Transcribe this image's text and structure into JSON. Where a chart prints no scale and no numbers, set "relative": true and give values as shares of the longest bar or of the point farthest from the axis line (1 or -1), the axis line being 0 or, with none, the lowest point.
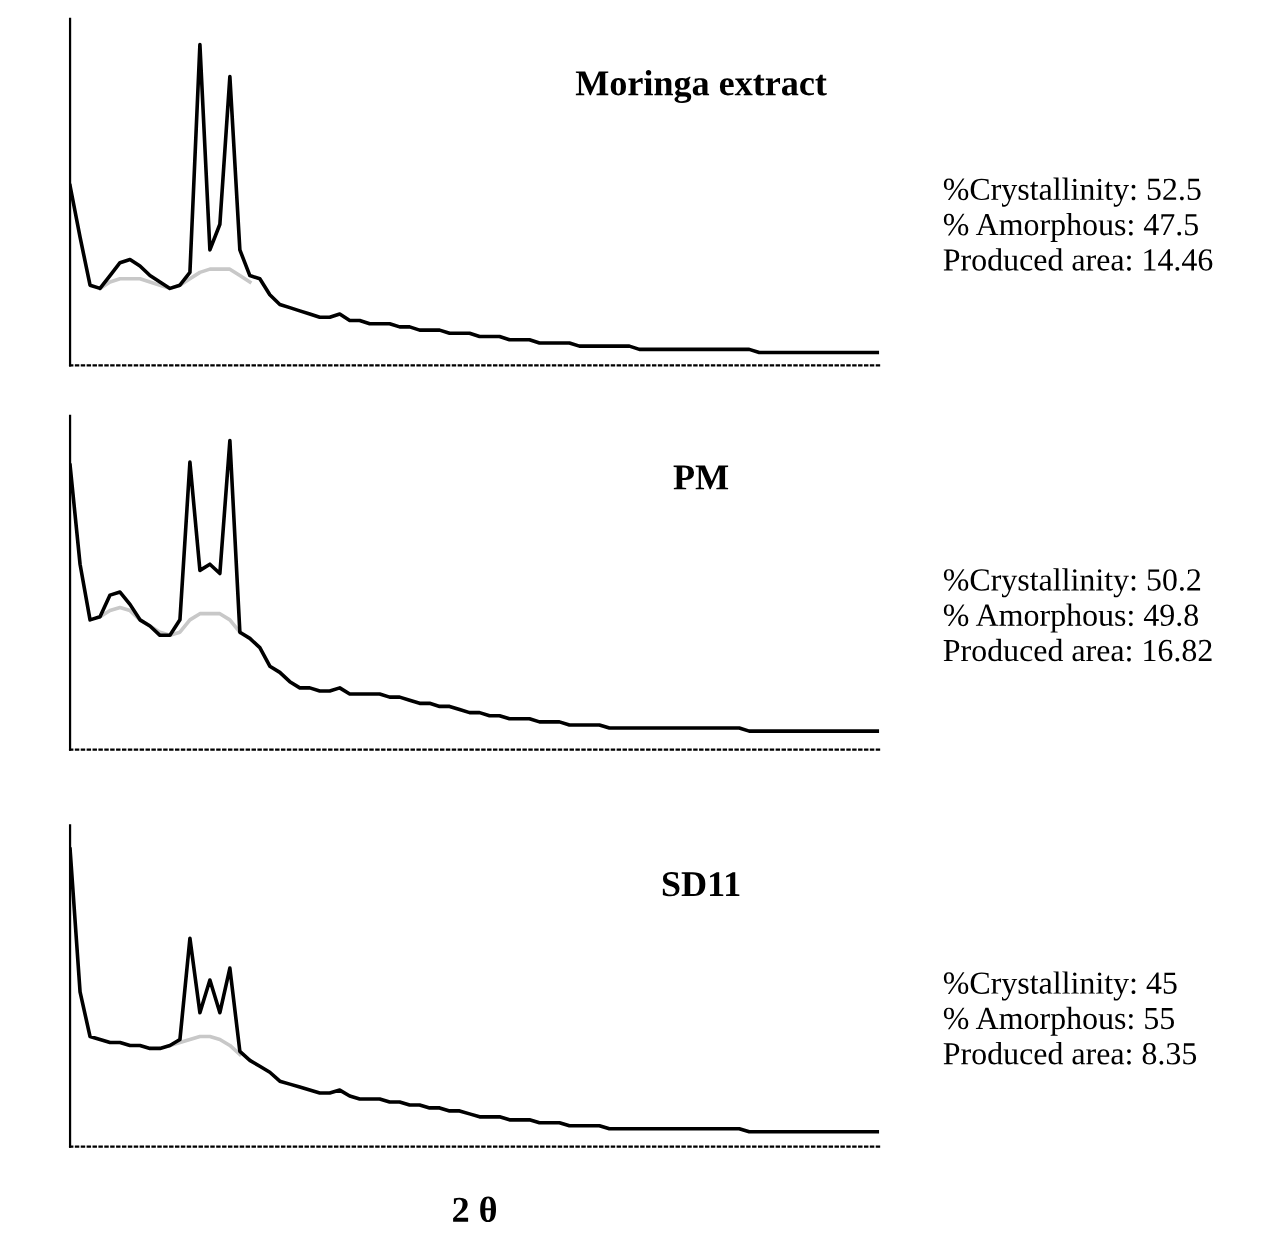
{
  "chart_data": [
    {
      "type": "line",
      "relative": true,
      "title": "Moringa extract",
      "categories": [
        null,
        null,
        null,
        null,
        null,
        null,
        null,
        null,
        null,
        null,
        null,
        null,
        null,
        null,
        null,
        null,
        null,
        null,
        null,
        null,
        null,
        null,
        null,
        null,
        null,
        null,
        null,
        null,
        null,
        null,
        null,
        null,
        null,
        null,
        null,
        null,
        null,
        null,
        null,
        null,
        null,
        null,
        null,
        null,
        null,
        null,
        null,
        null,
        null,
        null,
        null,
        null,
        null,
        null,
        null,
        null,
        null,
        null,
        null,
        null,
        null,
        null,
        null,
        null,
        null,
        null,
        null,
        null,
        null,
        null,
        null,
        null,
        null,
        null,
        null,
        null,
        null,
        null,
        null,
        null,
        null,
        null
      ],
      "series": [
        {
          "color": "#c8c8c8",
          "values": [
            null,
            null,
            null,
            0.24,
            0.26,
            0.27,
            0.27,
            0.27,
            0.26,
            0.25,
            0.24,
            0.25,
            0.27,
            0.29,
            0.3,
            0.3,
            0.3,
            0.28,
            0.26,
            null,
            null,
            null,
            null,
            null,
            null,
            null,
            null,
            null,
            null,
            null,
            null,
            null,
            null,
            null,
            null,
            null,
            null,
            null,
            null,
            null,
            null,
            null,
            null,
            null,
            null,
            null,
            null,
            null,
            null,
            null,
            null,
            null,
            null,
            null,
            null,
            null,
            null,
            null,
            null,
            null,
            null,
            null,
            null,
            null,
            null,
            null,
            null,
            null,
            null,
            null,
            null,
            null,
            null,
            null,
            null,
            null,
            null,
            null,
            null,
            null,
            null,
            null
          ]
        },
        {
          "color": "#000000",
          "values": [
            0.56,
            0.4,
            0.25,
            0.24,
            0.28,
            0.32,
            0.33,
            0.31,
            0.28,
            0.26,
            0.24,
            0.25,
            0.29,
            1.0,
            0.36,
            0.44,
            0.9,
            0.36,
            0.28,
            0.27,
            0.22,
            0.19,
            0.18,
            0.17,
            0.16,
            0.15,
            0.15,
            0.16,
            0.14,
            0.14,
            0.13,
            0.13,
            0.13,
            0.12,
            0.12,
            0.11,
            0.11,
            0.11,
            0.1,
            0.1,
            0.1,
            0.09,
            0.09,
            0.09,
            0.08,
            0.08,
            0.08,
            0.07,
            0.07,
            0.07,
            0.07,
            0.06,
            0.06,
            0.06,
            0.06,
            0.06,
            0.06,
            0.05,
            0.05,
            0.05,
            0.05,
            0.05,
            0.05,
            0.05,
            0.05,
            0.05,
            0.05,
            0.05,
            0.05,
            0.04,
            0.04,
            0.04,
            0.04,
            0.04,
            0.04,
            0.04,
            0.04,
            0.04,
            0.04,
            0.04,
            0.04,
            0.04
          ]
        }
      ],
      "annotations": [
        "%Crystallinity: 52.5",
        "% Amorphous: 47.5",
        "Produced area: 14.46"
      ]
    },
    {
      "type": "line",
      "relative": true,
      "title": "PM",
      "categories": [
        null,
        null,
        null,
        null,
        null,
        null,
        null,
        null,
        null,
        null,
        null,
        null,
        null,
        null,
        null,
        null,
        null,
        null,
        null,
        null,
        null,
        null,
        null,
        null,
        null,
        null,
        null,
        null,
        null,
        null,
        null,
        null,
        null,
        null,
        null,
        null,
        null,
        null,
        null,
        null,
        null,
        null,
        null,
        null,
        null,
        null,
        null,
        null,
        null,
        null,
        null,
        null,
        null,
        null,
        null,
        null,
        null,
        null,
        null,
        null,
        null,
        null,
        null,
        null,
        null,
        null,
        null,
        null,
        null,
        null,
        null,
        null,
        null,
        null,
        null,
        null,
        null,
        null,
        null,
        null,
        null,
        null
      ],
      "series": [
        {
          "color": "#c8c8c8",
          "values": [
            null,
            null,
            null,
            0.43,
            0.45,
            0.46,
            0.45,
            0.42,
            0.4,
            0.38,
            0.37,
            0.38,
            0.42,
            0.44,
            0.44,
            0.44,
            0.42,
            0.38,
            null,
            null,
            null,
            null,
            null,
            null,
            null,
            null,
            null,
            null,
            null,
            null,
            null,
            null,
            null,
            null,
            null,
            null,
            null,
            null,
            null,
            null,
            null,
            null,
            null,
            null,
            null,
            null,
            null,
            null,
            null,
            null,
            null,
            null,
            null,
            null,
            null,
            null,
            null,
            null,
            null,
            null,
            null,
            null,
            null,
            null,
            null,
            null,
            null,
            null,
            null,
            null,
            null,
            null,
            null,
            null,
            null,
            null,
            null,
            null,
            null,
            null,
            null,
            null
          ]
        },
        {
          "color": "#000000",
          "values": [
            0.92,
            0.6,
            0.42,
            0.43,
            0.5,
            0.51,
            0.47,
            0.42,
            0.4,
            0.37,
            0.37,
            0.42,
            0.93,
            0.58,
            0.6,
            0.57,
            1.0,
            0.38,
            0.36,
            0.33,
            0.27,
            0.25,
            0.22,
            0.2,
            0.2,
            0.19,
            0.19,
            0.2,
            0.18,
            0.18,
            0.18,
            0.18,
            0.17,
            0.17,
            0.16,
            0.15,
            0.15,
            0.14,
            0.14,
            0.13,
            0.12,
            0.12,
            0.11,
            0.11,
            0.1,
            0.1,
            0.1,
            0.09,
            0.09,
            0.09,
            0.08,
            0.08,
            0.08,
            0.08,
            0.07,
            0.07,
            0.07,
            0.07,
            0.07,
            0.07,
            0.07,
            0.07,
            0.07,
            0.07,
            0.07,
            0.07,
            0.07,
            0.07,
            0.06,
            0.06,
            0.06,
            0.06,
            0.06,
            0.06,
            0.06,
            0.06,
            0.06,
            0.06,
            0.06,
            0.06,
            0.06,
            0.06
          ]
        }
      ],
      "annotations": [
        "%Crystallinity: 50.2",
        "% Amorphous: 49.8",
        "Produced area: 16.82"
      ]
    },
    {
      "type": "line",
      "relative": true,
      "title": "SD11",
      "xlabel": "2 θ",
      "categories": [
        null,
        null,
        null,
        null,
        null,
        null,
        null,
        null,
        null,
        null,
        null,
        null,
        null,
        null,
        null,
        null,
        null,
        null,
        null,
        null,
        null,
        null,
        null,
        null,
        null,
        null,
        null,
        null,
        null,
        null,
        null,
        null,
        null,
        null,
        null,
        null,
        null,
        null,
        null,
        null,
        null,
        null,
        null,
        null,
        null,
        null,
        null,
        null,
        null,
        null,
        null,
        null,
        null,
        null,
        null,
        null,
        null,
        null,
        null,
        null,
        null,
        null,
        null,
        null,
        null,
        null,
        null,
        null,
        null,
        null,
        null,
        null,
        null,
        null,
        null,
        null,
        null,
        null,
        null,
        null,
        null,
        null
      ],
      "series": [
        {
          "color": "#c8c8c8",
          "values": [
            null,
            null,
            null,
            null,
            null,
            null,
            null,
            null,
            null,
            null,
            0.34,
            0.35,
            0.36,
            0.37,
            0.37,
            0.36,
            0.34,
            0.31,
            null,
            null,
            null,
            null,
            null,
            null,
            null,
            null,
            null,
            null,
            null,
            null,
            null,
            null,
            null,
            null,
            null,
            null,
            null,
            null,
            null,
            null,
            null,
            null,
            null,
            null,
            null,
            null,
            null,
            null,
            null,
            null,
            null,
            null,
            null,
            null,
            null,
            null,
            null,
            null,
            null,
            null,
            null,
            null,
            null,
            null,
            null,
            null,
            null,
            null,
            null,
            null,
            null,
            null,
            null,
            null,
            null,
            null,
            null,
            null,
            null,
            null,
            null,
            null
          ]
        },
        {
          "color": "#000000",
          "values": [
            1.0,
            0.52,
            0.37,
            0.36,
            0.35,
            0.35,
            0.34,
            0.34,
            0.33,
            0.33,
            0.34,
            0.36,
            0.7,
            0.45,
            0.56,
            0.45,
            0.6,
            0.32,
            0.29,
            0.27,
            0.25,
            0.22,
            0.21,
            0.2,
            0.19,
            0.18,
            0.18,
            0.19,
            0.17,
            0.16,
            0.16,
            0.16,
            0.15,
            0.15,
            0.14,
            0.14,
            0.13,
            0.13,
            0.12,
            0.12,
            0.11,
            0.1,
            0.1,
            0.1,
            0.09,
            0.09,
            0.09,
            0.08,
            0.08,
            0.08,
            0.07,
            0.07,
            0.07,
            0.07,
            0.06,
            0.06,
            0.06,
            0.06,
            0.06,
            0.06,
            0.06,
            0.06,
            0.06,
            0.06,
            0.06,
            0.06,
            0.06,
            0.06,
            0.05,
            0.05,
            0.05,
            0.05,
            0.05,
            0.05,
            0.05,
            0.05,
            0.05,
            0.05,
            0.05,
            0.05,
            0.05,
            0.05
          ]
        }
      ],
      "annotations": [
        "%Crystallinity: 45",
        "% Amorphous: 55",
        "Produced area: 8.35"
      ]
    }
  ]
}
